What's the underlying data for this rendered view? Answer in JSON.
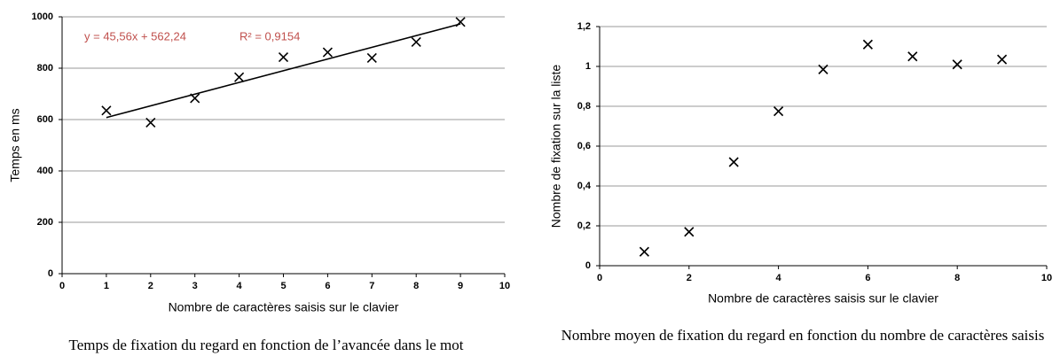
{
  "chart_data": [
    {
      "type": "scatter",
      "caption": "Temps de fixation du regard en fonction de l’avancée dans le mot",
      "xlabel": "Nombre de caractères saisis sur le clavier",
      "ylabel": "Temps en ms",
      "annotations": [
        "y = 45,56x + 562,24",
        "R² = 0,9154"
      ],
      "trendline": {
        "slope": 45.56,
        "intercept": 562.24
      },
      "x": [
        1,
        2,
        3,
        4,
        5,
        6,
        7,
        8,
        9
      ],
      "values": [
        635,
        588,
        683,
        765,
        843,
        862,
        840,
        902,
        980
      ],
      "color": "#000000",
      "xlim": [
        0,
        10
      ],
      "xticks": [
        0,
        1,
        2,
        3,
        4,
        5,
        6,
        7,
        8,
        9,
        10
      ],
      "ylim": [
        0,
        1000
      ],
      "yticks": [
        0,
        200,
        400,
        600,
        800,
        1000
      ],
      "grid": true
    },
    {
      "type": "scatter",
      "caption": "Nombre moyen de fixation du regard en fonction du nombre de caractères saisis",
      "xlabel": "Nombre de caractères saisis sur le clavier",
      "ylabel": "Nombre de fixation sur la liste",
      "x": [
        1,
        2,
        3,
        4,
        5,
        6,
        7,
        8,
        9
      ],
      "values": [
        0.07,
        0.17,
        0.52,
        0.775,
        0.985,
        1.11,
        1.05,
        1.01,
        1.035
      ],
      "color": "#000000",
      "xlim": [
        0,
        10
      ],
      "xticks": [
        0,
        2,
        4,
        6,
        8,
        10
      ],
      "ylim": [
        0,
        1.2
      ],
      "yticks": [
        0,
        {
          "value": 0.2,
          "label": "0,2"
        },
        {
          "value": 0.4,
          "label": "0,4"
        },
        {
          "value": 0.6,
          "label": "0,6"
        },
        {
          "value": 0.8,
          "label": "0,8"
        },
        1,
        {
          "value": 1.2,
          "label": "1,2"
        }
      ],
      "grid": true
    }
  ]
}
